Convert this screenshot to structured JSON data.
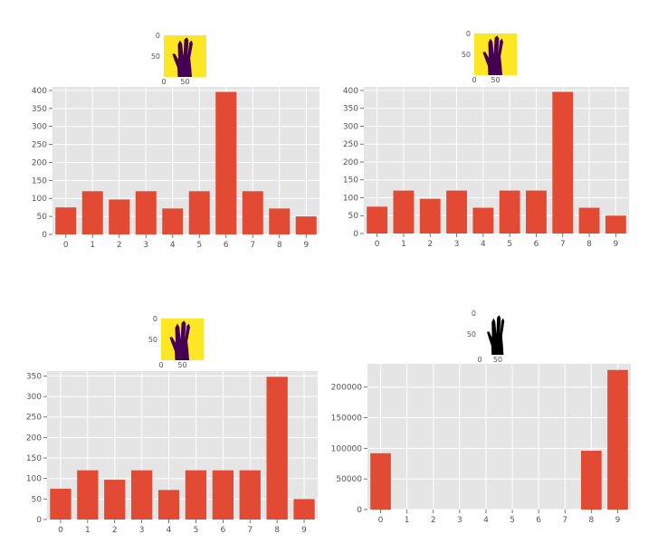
{
  "colors": {
    "bar": "#E24A33",
    "panel": "#E5E5E5",
    "grid": "#FFFFFF",
    "thumb_bg": "#FDE725",
    "thumb_hand": "#440154",
    "thumb_bw_hand": "#000000"
  },
  "chart_data": [
    {
      "type": "bar",
      "categories": [
        "0",
        "1",
        "2",
        "3",
        "4",
        "5",
        "6",
        "7",
        "8",
        "9"
      ],
      "values": [
        75,
        120,
        97,
        120,
        72,
        120,
        396,
        120,
        72,
        50
      ],
      "ylim": [
        0,
        410
      ],
      "yticks": [
        0,
        50,
        100,
        150,
        200,
        250,
        300,
        350,
        400
      ],
      "grid": true,
      "thumbnail": {
        "colormap": "viridis",
        "yticks": [
          "0",
          "50"
        ],
        "xticks": [
          "0",
          "50"
        ]
      }
    },
    {
      "type": "bar",
      "categories": [
        "0",
        "1",
        "2",
        "3",
        "4",
        "5",
        "6",
        "7",
        "8",
        "9"
      ],
      "values": [
        75,
        120,
        97,
        120,
        72,
        120,
        120,
        396,
        72,
        50
      ],
      "ylim": [
        0,
        410
      ],
      "yticks": [
        0,
        50,
        100,
        150,
        200,
        250,
        300,
        350,
        400
      ],
      "grid": true,
      "thumbnail": {
        "colormap": "viridis",
        "yticks": [
          "0",
          "50"
        ],
        "xticks": [
          "0",
          "50"
        ]
      }
    },
    {
      "type": "bar",
      "categories": [
        "0",
        "1",
        "2",
        "3",
        "4",
        "5",
        "6",
        "7",
        "8",
        "9"
      ],
      "values": [
        75,
        120,
        97,
        120,
        72,
        120,
        120,
        120,
        348,
        50
      ],
      "ylim": [
        0,
        362
      ],
      "yticks": [
        0,
        50,
        100,
        150,
        200,
        250,
        300,
        350
      ],
      "grid": true,
      "thumbnail": {
        "colormap": "viridis",
        "yticks": [
          "0",
          "50"
        ],
        "xticks": [
          "0",
          "50"
        ]
      }
    },
    {
      "type": "bar",
      "categories": [
        "0",
        "1",
        "2",
        "3",
        "4",
        "5",
        "6",
        "7",
        "8",
        "9"
      ],
      "values": [
        92000,
        0,
        0,
        0,
        0,
        0,
        0,
        0,
        96000,
        228000
      ],
      "ylim": [
        0,
        238000
      ],
      "yticks": [
        0,
        50000,
        100000,
        150000,
        200000
      ],
      "grid": true,
      "thumbnail": {
        "colormap": "gray",
        "yticks": [
          "0",
          "50"
        ],
        "xticks": [
          "0",
          "50"
        ]
      }
    }
  ]
}
